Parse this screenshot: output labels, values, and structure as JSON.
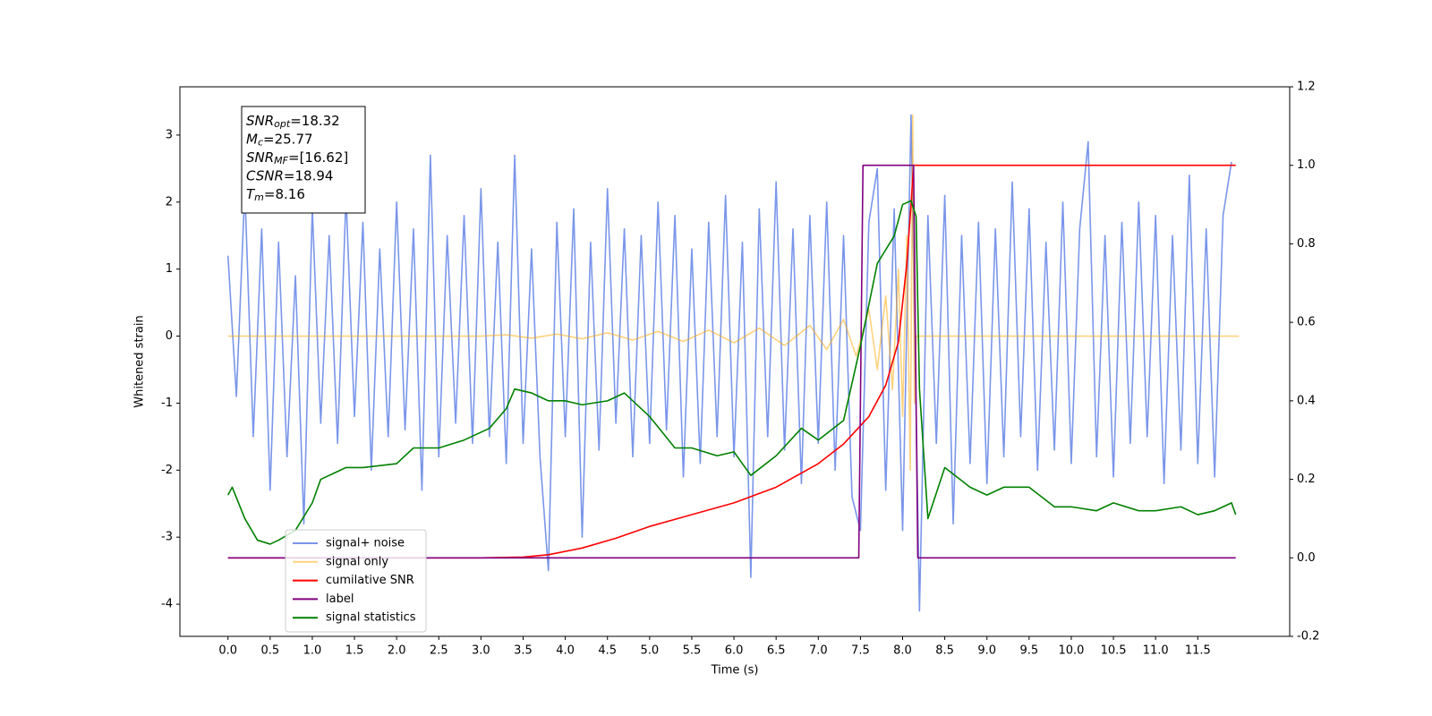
{
  "chart_data": {
    "type": "line",
    "xlabel": "Time (s)",
    "ylabel": "Whitened strain",
    "xlim": [
      -0.57,
      12.59
    ],
    "ylim": [
      -4.48,
      3.72
    ],
    "y2lim": [
      -0.2,
      1.2
    ],
    "xticks": [
      {
        "value": 0,
        "label": "0.0"
      },
      0.5,
      {
        "value": 1,
        "label": "1.0"
      },
      1.5,
      {
        "value": 2,
        "label": "2.0"
      },
      2.5,
      {
        "value": 3,
        "label": "3.0"
      },
      3.5,
      {
        "value": 4,
        "label": "4.0"
      },
      4.5,
      {
        "value": 5,
        "label": "5.0"
      },
      5.5,
      {
        "value": 6,
        "label": "6.0"
      },
      6.5,
      {
        "value": 7,
        "label": "7.0"
      },
      7.5,
      {
        "value": 8,
        "label": "8.0"
      },
      8.5,
      {
        "value": 9,
        "label": "9.0"
      },
      9.5,
      {
        "value": 10,
        "label": "10.0"
      },
      10.5,
      {
        "value": 11,
        "label": "11.0"
      },
      11.5
    ],
    "yticks": [
      -4,
      -3,
      -2,
      -1,
      0,
      1,
      2,
      3
    ],
    "y2ticks": [
      -0.2,
      {
        "value": 0,
        "label": "0.0"
      },
      0.2,
      0.4,
      0.6,
      0.8,
      {
        "value": 1,
        "label": "1.0"
      },
      1.2
    ],
    "legend": "lower left",
    "annotations": [
      {
        "symbol": "SNR",
        "subscript": "opt",
        "text": "=18.32"
      },
      {
        "symbol": "M",
        "subscript": "c",
        "text": "=25.77"
      },
      {
        "symbol": "SNR",
        "subscript": "MF",
        "text": "=[16.62]"
      },
      {
        "symbol": "CSNR",
        "subscript": "",
        "text": "=18.94"
      },
      {
        "symbol": "T",
        "subscript": "m",
        "text": "=8.16"
      }
    ],
    "series": [
      {
        "name": "signal+ noise",
        "color": "#4169e1",
        "alpha": 0.7,
        "axis": "y",
        "x": [
          0,
          0.1,
          0.2,
          0.3,
          0.4,
          0.5,
          0.6,
          0.7,
          0.8,
          0.9,
          1,
          1.1,
          1.2,
          1.3,
          1.4,
          1.5,
          1.6,
          1.7,
          1.8,
          1.9,
          2,
          2.1,
          2.2,
          2.3,
          2.4,
          2.5,
          2.6,
          2.7,
          2.8,
          2.9,
          3,
          3.1,
          3.2,
          3.3,
          3.4,
          3.5,
          3.6,
          3.7,
          3.8,
          3.9,
          4,
          4.1,
          4.2,
          4.3,
          4.4,
          4.5,
          4.6,
          4.7,
          4.8,
          4.9,
          5,
          5.1,
          5.2,
          5.3,
          5.4,
          5.5,
          5.6,
          5.7,
          5.8,
          5.9,
          6,
          6.1,
          6.2,
          6.3,
          6.4,
          6.5,
          6.6,
          6.7,
          6.8,
          6.9,
          7,
          7.1,
          7.2,
          7.3,
          7.4,
          7.5,
          7.6,
          7.7,
          7.8,
          7.9,
          8,
          8.1,
          8.2,
          8.3,
          8.4,
          8.5,
          8.6,
          8.7,
          8.8,
          8.9,
          9,
          9.1,
          9.2,
          9.3,
          9.4,
          9.5,
          9.6,
          9.7,
          9.8,
          9.9,
          10,
          10.1,
          10.2,
          10.3,
          10.4,
          10.5,
          10.6,
          10.7,
          10.8,
          10.9,
          11,
          11.1,
          11.2,
          11.3,
          11.4,
          11.5,
          11.6,
          11.7,
          11.8,
          11.9
        ],
        "values": [
          1.2,
          -0.9,
          2.2,
          -1.5,
          1.6,
          -2.3,
          1.4,
          -1.8,
          0.9,
          -2.8,
          1.9,
          -1.3,
          1.5,
          -1.6,
          2.1,
          -1.2,
          1.7,
          -2.0,
          1.3,
          -1.5,
          2.0,
          -1.4,
          1.6,
          -2.3,
          2.7,
          -1.8,
          1.5,
          -1.3,
          1.8,
          -1.6,
          2.2,
          -1.5,
          1.4,
          -1.9,
          2.7,
          -1.6,
          1.3,
          -1.8,
          -3.5,
          1.7,
          -1.5,
          1.9,
          -3.0,
          1.4,
          -1.7,
          2.2,
          -1.3,
          1.6,
          -1.8,
          1.5,
          -1.6,
          2.0,
          -1.4,
          1.8,
          -2.1,
          1.3,
          -1.9,
          1.7,
          -1.5,
          2.1,
          -1.8,
          1.4,
          -3.6,
          1.9,
          -1.5,
          2.3,
          -1.7,
          1.6,
          -2.2,
          1.8,
          -1.6,
          2.0,
          -2.0,
          1.5,
          -2.4,
          -2.9,
          1.7,
          2.5,
          -2.3,
          1.9,
          -2.9,
          3.3,
          -4.1,
          1.8,
          -1.6,
          2.1,
          -2.8,
          1.5,
          -1.9,
          1.7,
          -2.2,
          1.6,
          -1.8,
          2.3,
          -1.5,
          1.9,
          -2.0,
          1.4,
          -1.7,
          2.0,
          -1.9,
          1.6,
          2.9,
          -1.8,
          1.5,
          -2.1,
          1.7,
          -1.6,
          2.0,
          -1.5,
          1.8,
          -2.2,
          1.5,
          -1.7,
          2.4,
          -1.9,
          1.6,
          -2.1,
          1.8,
          2.6
        ]
      },
      {
        "name": "signal only",
        "color": "orange",
        "alpha": 0.5,
        "axis": "y",
        "x": [
          0,
          3.0,
          3.3,
          3.6,
          3.9,
          4.2,
          4.5,
          4.8,
          5.1,
          5.4,
          5.7,
          6.0,
          6.3,
          6.6,
          6.9,
          7.1,
          7.3,
          7.45,
          7.6,
          7.7,
          7.8,
          7.88,
          7.95,
          8.0,
          8.05,
          8.09,
          8.12,
          8.14,
          8.16,
          8.2,
          11.99
        ],
        "values": [
          0,
          0,
          0.02,
          -0.03,
          0.03,
          -0.04,
          0.05,
          -0.06,
          0.07,
          -0.08,
          0.09,
          -0.1,
          0.12,
          -0.14,
          0.16,
          -0.2,
          0.25,
          -0.3,
          0.4,
          -0.5,
          0.6,
          -0.8,
          1.0,
          -1.2,
          1.5,
          -2.0,
          3.3,
          -1.0,
          0,
          0,
          0
        ]
      },
      {
        "name": "cumilative SNR",
        "color": "red",
        "alpha": 1,
        "axis": "y2",
        "x": [
          0,
          3.0,
          3.5,
          3.8,
          4.2,
          4.6,
          5.0,
          5.5,
          6.0,
          6.5,
          7.0,
          7.3,
          7.6,
          7.8,
          7.95,
          8.05,
          8.1,
          8.13,
          8.16,
          11.95
        ],
        "values": [
          0,
          0,
          0.002,
          0.008,
          0.025,
          0.05,
          0.08,
          0.11,
          0.14,
          0.18,
          0.24,
          0.29,
          0.36,
          0.44,
          0.55,
          0.75,
          0.9,
          1.0,
          1.0,
          1.0
        ]
      },
      {
        "name": "label",
        "color": "purple",
        "alpha": 1,
        "axis": "y2",
        "x": [
          0,
          7.48,
          7.53,
          8.13,
          8.18,
          11.95
        ],
        "values": [
          0,
          0,
          1,
          1,
          0,
          0
        ]
      },
      {
        "name": "signal statistics",
        "color": "green",
        "alpha": 1,
        "axis": "y2",
        "x": [
          0,
          0.05,
          0.2,
          0.35,
          0.5,
          0.6,
          0.8,
          1.0,
          1.1,
          1.4,
          1.6,
          2.0,
          2.2,
          2.5,
          2.8,
          3.1,
          3.3,
          3.4,
          3.6,
          3.8,
          4.0,
          4.2,
          4.5,
          4.7,
          5.0,
          5.3,
          5.5,
          5.8,
          6.0,
          6.2,
          6.5,
          6.8,
          7.0,
          7.3,
          7.5,
          7.7,
          7.9,
          8.0,
          8.1,
          8.16,
          8.2,
          8.3,
          8.5,
          8.8,
          9.0,
          9.2,
          9.5,
          9.8,
          10.0,
          10.3,
          10.5,
          10.8,
          11.0,
          11.3,
          11.5,
          11.7,
          11.9,
          11.95
        ],
        "values": [
          0.16,
          0.18,
          0.1,
          0.045,
          0.035,
          0.045,
          0.07,
          0.14,
          0.2,
          0.23,
          0.23,
          0.24,
          0.28,
          0.28,
          0.3,
          0.33,
          0.38,
          0.43,
          0.42,
          0.4,
          0.4,
          0.39,
          0.4,
          0.42,
          0.36,
          0.28,
          0.28,
          0.26,
          0.27,
          0.21,
          0.26,
          0.33,
          0.3,
          0.35,
          0.54,
          0.75,
          0.82,
          0.9,
          0.91,
          0.87,
          0.43,
          0.1,
          0.23,
          0.18,
          0.16,
          0.18,
          0.18,
          0.13,
          0.13,
          0.12,
          0.14,
          0.12,
          0.12,
          0.13,
          0.11,
          0.12,
          0.14,
          0.11
        ]
      }
    ]
  }
}
